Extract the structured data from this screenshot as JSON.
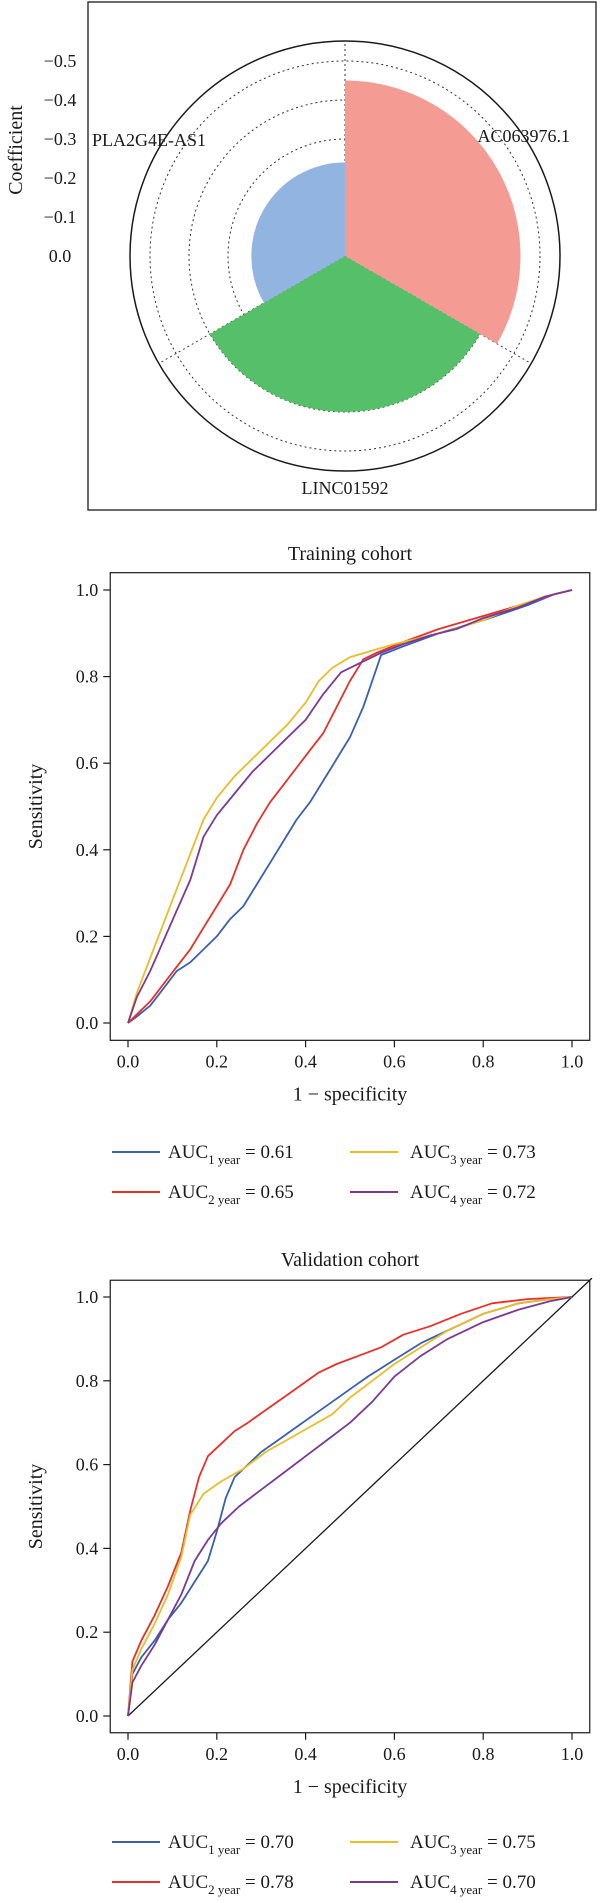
{
  "chart_data": [
    {
      "type": "radial-bar",
      "ylabel": "Coefficient",
      "radial_ticks": [
        "0.0",
        "−0.1",
        "−0.2",
        "−0.3",
        "−0.4",
        "−0.5"
      ],
      "rlim": [
        0,
        0.5
      ],
      "categories": [
        "AC063976.1",
        "LINC01592",
        "PLA2G4E-AS1"
      ],
      "values": [
        -0.45,
        -0.4,
        -0.24
      ],
      "colors": [
        "#f49b94",
        "#55bf6a",
        "#92b4e1"
      ]
    },
    {
      "type": "line",
      "title": "Training cohort",
      "xlabel": "1 − specificity",
      "ylabel": "Sensitivity",
      "xlim": [
        0,
        1
      ],
      "ylim": [
        0,
        1
      ],
      "xticks": [
        "0.0",
        "0.2",
        "0.4",
        "0.6",
        "0.8",
        "1.0"
      ],
      "yticks": [
        "0.0",
        "0.2",
        "0.4",
        "0.6",
        "0.8",
        "1.0"
      ],
      "diagonal": false,
      "series": [
        {
          "name": "1 year",
          "auc": "0.61",
          "color": "#3a5fb0",
          "x": [
            0,
            0.02,
            0.05,
            0.08,
            0.11,
            0.14,
            0.17,
            0.2,
            0.23,
            0.26,
            0.29,
            0.32,
            0.35,
            0.38,
            0.41,
            0.44,
            0.47,
            0.5,
            0.53,
            0.57,
            0.62,
            0.7,
            0.8,
            0.9,
            0.96,
            1.0
          ],
          "y": [
            0,
            0.015,
            0.04,
            0.08,
            0.12,
            0.14,
            0.17,
            0.2,
            0.24,
            0.27,
            0.32,
            0.37,
            0.42,
            0.47,
            0.51,
            0.56,
            0.61,
            0.66,
            0.73,
            0.85,
            0.87,
            0.9,
            0.93,
            0.965,
            0.99,
            1.0
          ]
        },
        {
          "name": "2 year",
          "auc": "0.65",
          "color": "#e8302a",
          "x": [
            0,
            0.02,
            0.05,
            0.08,
            0.11,
            0.14,
            0.17,
            0.2,
            0.23,
            0.26,
            0.29,
            0.32,
            0.35,
            0.38,
            0.41,
            0.44,
            0.47,
            0.5,
            0.53,
            0.56,
            0.62,
            0.7,
            0.8,
            0.9,
            0.96,
            1.0
          ],
          "y": [
            0,
            0.02,
            0.05,
            0.09,
            0.13,
            0.17,
            0.22,
            0.27,
            0.32,
            0.4,
            0.46,
            0.51,
            0.55,
            0.59,
            0.63,
            0.67,
            0.73,
            0.79,
            0.84,
            0.855,
            0.88,
            0.91,
            0.94,
            0.97,
            0.99,
            1.0
          ]
        },
        {
          "name": "3 year",
          "auc": "0.73",
          "color": "#e9bd2a",
          "x": [
            0,
            0.02,
            0.05,
            0.08,
            0.11,
            0.14,
            0.17,
            0.2,
            0.24,
            0.28,
            0.32,
            0.36,
            0.4,
            0.43,
            0.46,
            0.5,
            0.55,
            0.6,
            0.66,
            0.72,
            0.8,
            0.88,
            0.94,
            1.0
          ],
          "y": [
            0,
            0.07,
            0.15,
            0.23,
            0.31,
            0.39,
            0.47,
            0.52,
            0.57,
            0.61,
            0.65,
            0.69,
            0.74,
            0.79,
            0.82,
            0.845,
            0.86,
            0.875,
            0.89,
            0.905,
            0.93,
            0.965,
            0.985,
            1.0
          ]
        },
        {
          "name": "4 year",
          "auc": "0.72",
          "color": "#7a3a94",
          "x": [
            0,
            0.02,
            0.05,
            0.08,
            0.11,
            0.14,
            0.17,
            0.2,
            0.24,
            0.28,
            0.32,
            0.36,
            0.4,
            0.44,
            0.48,
            0.52,
            0.57,
            0.62,
            0.68,
            0.74,
            0.8,
            0.88,
            0.94,
            1.0
          ],
          "y": [
            0,
            0.06,
            0.12,
            0.19,
            0.26,
            0.33,
            0.43,
            0.48,
            0.53,
            0.58,
            0.62,
            0.66,
            0.7,
            0.76,
            0.81,
            0.83,
            0.855,
            0.875,
            0.895,
            0.91,
            0.935,
            0.96,
            0.985,
            1.0
          ]
        }
      ]
    },
    {
      "type": "line",
      "title": "Validation cohort",
      "xlabel": "1 − specificity",
      "ylabel": "Sensitivity",
      "xlim": [
        0,
        1
      ],
      "ylim": [
        0,
        1
      ],
      "xticks": [
        "0.0",
        "0.2",
        "0.4",
        "0.6",
        "0.8",
        "1.0"
      ],
      "yticks": [
        "0.0",
        "0.2",
        "0.4",
        "0.6",
        "0.8",
        "1.0"
      ],
      "diagonal": true,
      "series": [
        {
          "name": "1 year",
          "auc": "0.70",
          "color": "#3a5fb0",
          "x": [
            0,
            0.01,
            0.03,
            0.06,
            0.09,
            0.12,
            0.15,
            0.18,
            0.2,
            0.22,
            0.24,
            0.27,
            0.3,
            0.34,
            0.38,
            0.42,
            0.46,
            0.5,
            0.54,
            0.6,
            0.66,
            0.72,
            0.8,
            0.88,
            0.95,
            1.0
          ],
          "y": [
            0,
            0.1,
            0.14,
            0.18,
            0.23,
            0.27,
            0.32,
            0.37,
            0.44,
            0.52,
            0.57,
            0.6,
            0.63,
            0.66,
            0.69,
            0.72,
            0.75,
            0.78,
            0.81,
            0.85,
            0.89,
            0.92,
            0.96,
            0.985,
            0.995,
            1.0
          ]
        },
        {
          "name": "2 year",
          "auc": "0.78",
          "color": "#e8302a",
          "x": [
            0,
            0.01,
            0.03,
            0.06,
            0.09,
            0.12,
            0.14,
            0.16,
            0.18,
            0.21,
            0.24,
            0.27,
            0.31,
            0.35,
            0.39,
            0.43,
            0.47,
            0.52,
            0.57,
            0.62,
            0.68,
            0.75,
            0.82,
            0.9,
            0.96,
            1.0
          ],
          "y": [
            0,
            0.13,
            0.18,
            0.24,
            0.31,
            0.39,
            0.49,
            0.57,
            0.62,
            0.65,
            0.68,
            0.7,
            0.73,
            0.76,
            0.79,
            0.82,
            0.84,
            0.86,
            0.88,
            0.91,
            0.93,
            0.96,
            0.985,
            0.995,
            0.998,
            1.0
          ]
        },
        {
          "name": "3 year",
          "auc": "0.75",
          "color": "#e9bd2a",
          "x": [
            0,
            0.01,
            0.03,
            0.06,
            0.09,
            0.12,
            0.14,
            0.17,
            0.21,
            0.26,
            0.31,
            0.36,
            0.41,
            0.46,
            0.5,
            0.55,
            0.6,
            0.66,
            0.72,
            0.8,
            0.88,
            0.95,
            1.0
          ],
          "y": [
            0,
            0.11,
            0.16,
            0.22,
            0.29,
            0.38,
            0.48,
            0.53,
            0.56,
            0.59,
            0.63,
            0.66,
            0.69,
            0.72,
            0.76,
            0.8,
            0.84,
            0.88,
            0.92,
            0.96,
            0.985,
            0.995,
            1.0
          ]
        },
        {
          "name": "4 year",
          "auc": "0.70",
          "color": "#7a3a94",
          "x": [
            0,
            0.01,
            0.03,
            0.06,
            0.09,
            0.12,
            0.15,
            0.18,
            0.21,
            0.25,
            0.3,
            0.35,
            0.4,
            0.45,
            0.5,
            0.55,
            0.6,
            0.66,
            0.72,
            0.8,
            0.88,
            0.95,
            1.0
          ],
          "y": [
            0,
            0.08,
            0.12,
            0.17,
            0.23,
            0.29,
            0.37,
            0.42,
            0.46,
            0.5,
            0.54,
            0.58,
            0.62,
            0.66,
            0.7,
            0.75,
            0.81,
            0.86,
            0.9,
            0.94,
            0.97,
            0.99,
            1.0
          ]
        }
      ]
    }
  ]
}
